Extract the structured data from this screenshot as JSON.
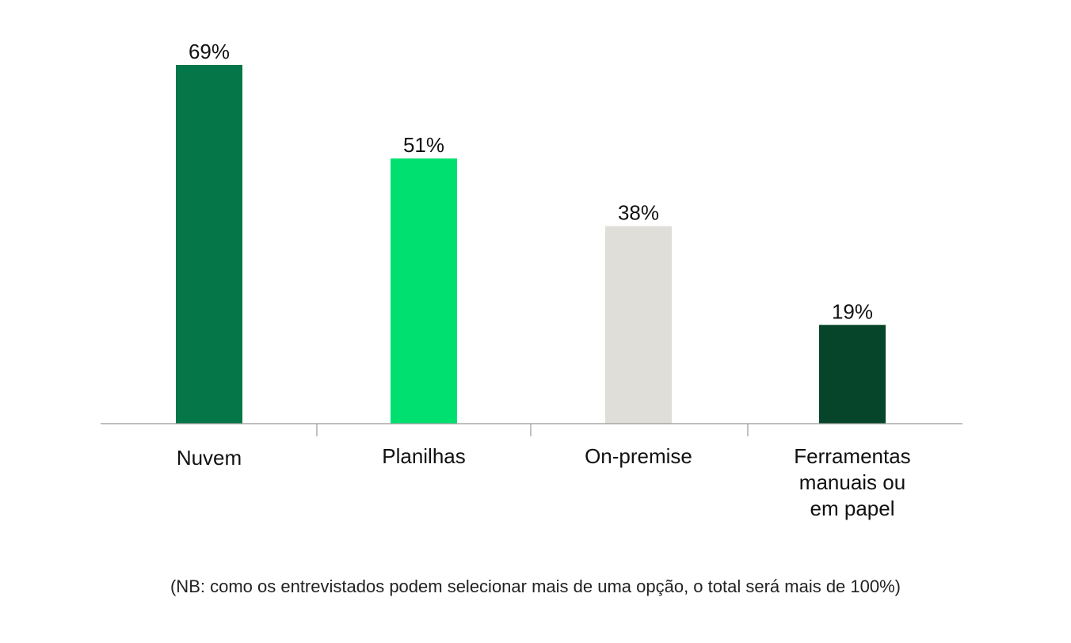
{
  "chart_data": {
    "type": "bar",
    "categories": [
      "Nuvem",
      "Planilhas",
      "On-premise",
      "Ferramentas manuais ou em papel"
    ],
    "values": [
      69,
      51,
      38,
      19
    ],
    "value_labels": [
      "69%",
      "51%",
      "38%",
      "19%"
    ],
    "bar_colors": [
      "#047648",
      "#00E070",
      "#E0DED9",
      "#064529"
    ],
    "category_label_lines": [
      [
        "Nuvem"
      ],
      [
        "Planilhas"
      ],
      [
        "On-premise"
      ],
      [
        "Ferramentas",
        "manuais ou",
        "em papel"
      ]
    ],
    "ylim": [
      0,
      69
    ],
    "unit": "%",
    "grid": false,
    "legend": "none",
    "axis_color": "#999999"
  },
  "footnote": "(NB: como os entrevistados podem selecionar mais de uma opção, o total será mais de 100%)"
}
